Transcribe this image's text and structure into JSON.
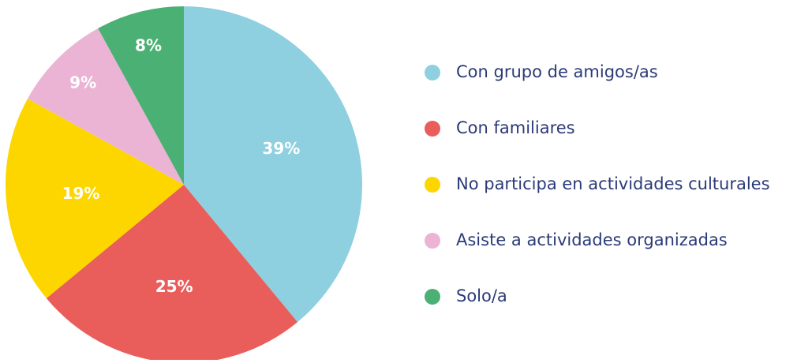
{
  "chart_data": {
    "type": "pie",
    "categories": [
      "Con grupo de amigos/as",
      "Con familiares",
      "No participa en actividades culturales",
      "Asiste a actividades organizadas",
      "Solo/a"
    ],
    "values": [
      39,
      25,
      19,
      9,
      8
    ],
    "value_labels": [
      "39%",
      "25%",
      "19%",
      "9%",
      "8%"
    ],
    "colors": [
      "#8fd0e0",
      "#e95d5b",
      "#fdd600",
      "#ebb4d5",
      "#4bb073"
    ],
    "legend": "right"
  }
}
